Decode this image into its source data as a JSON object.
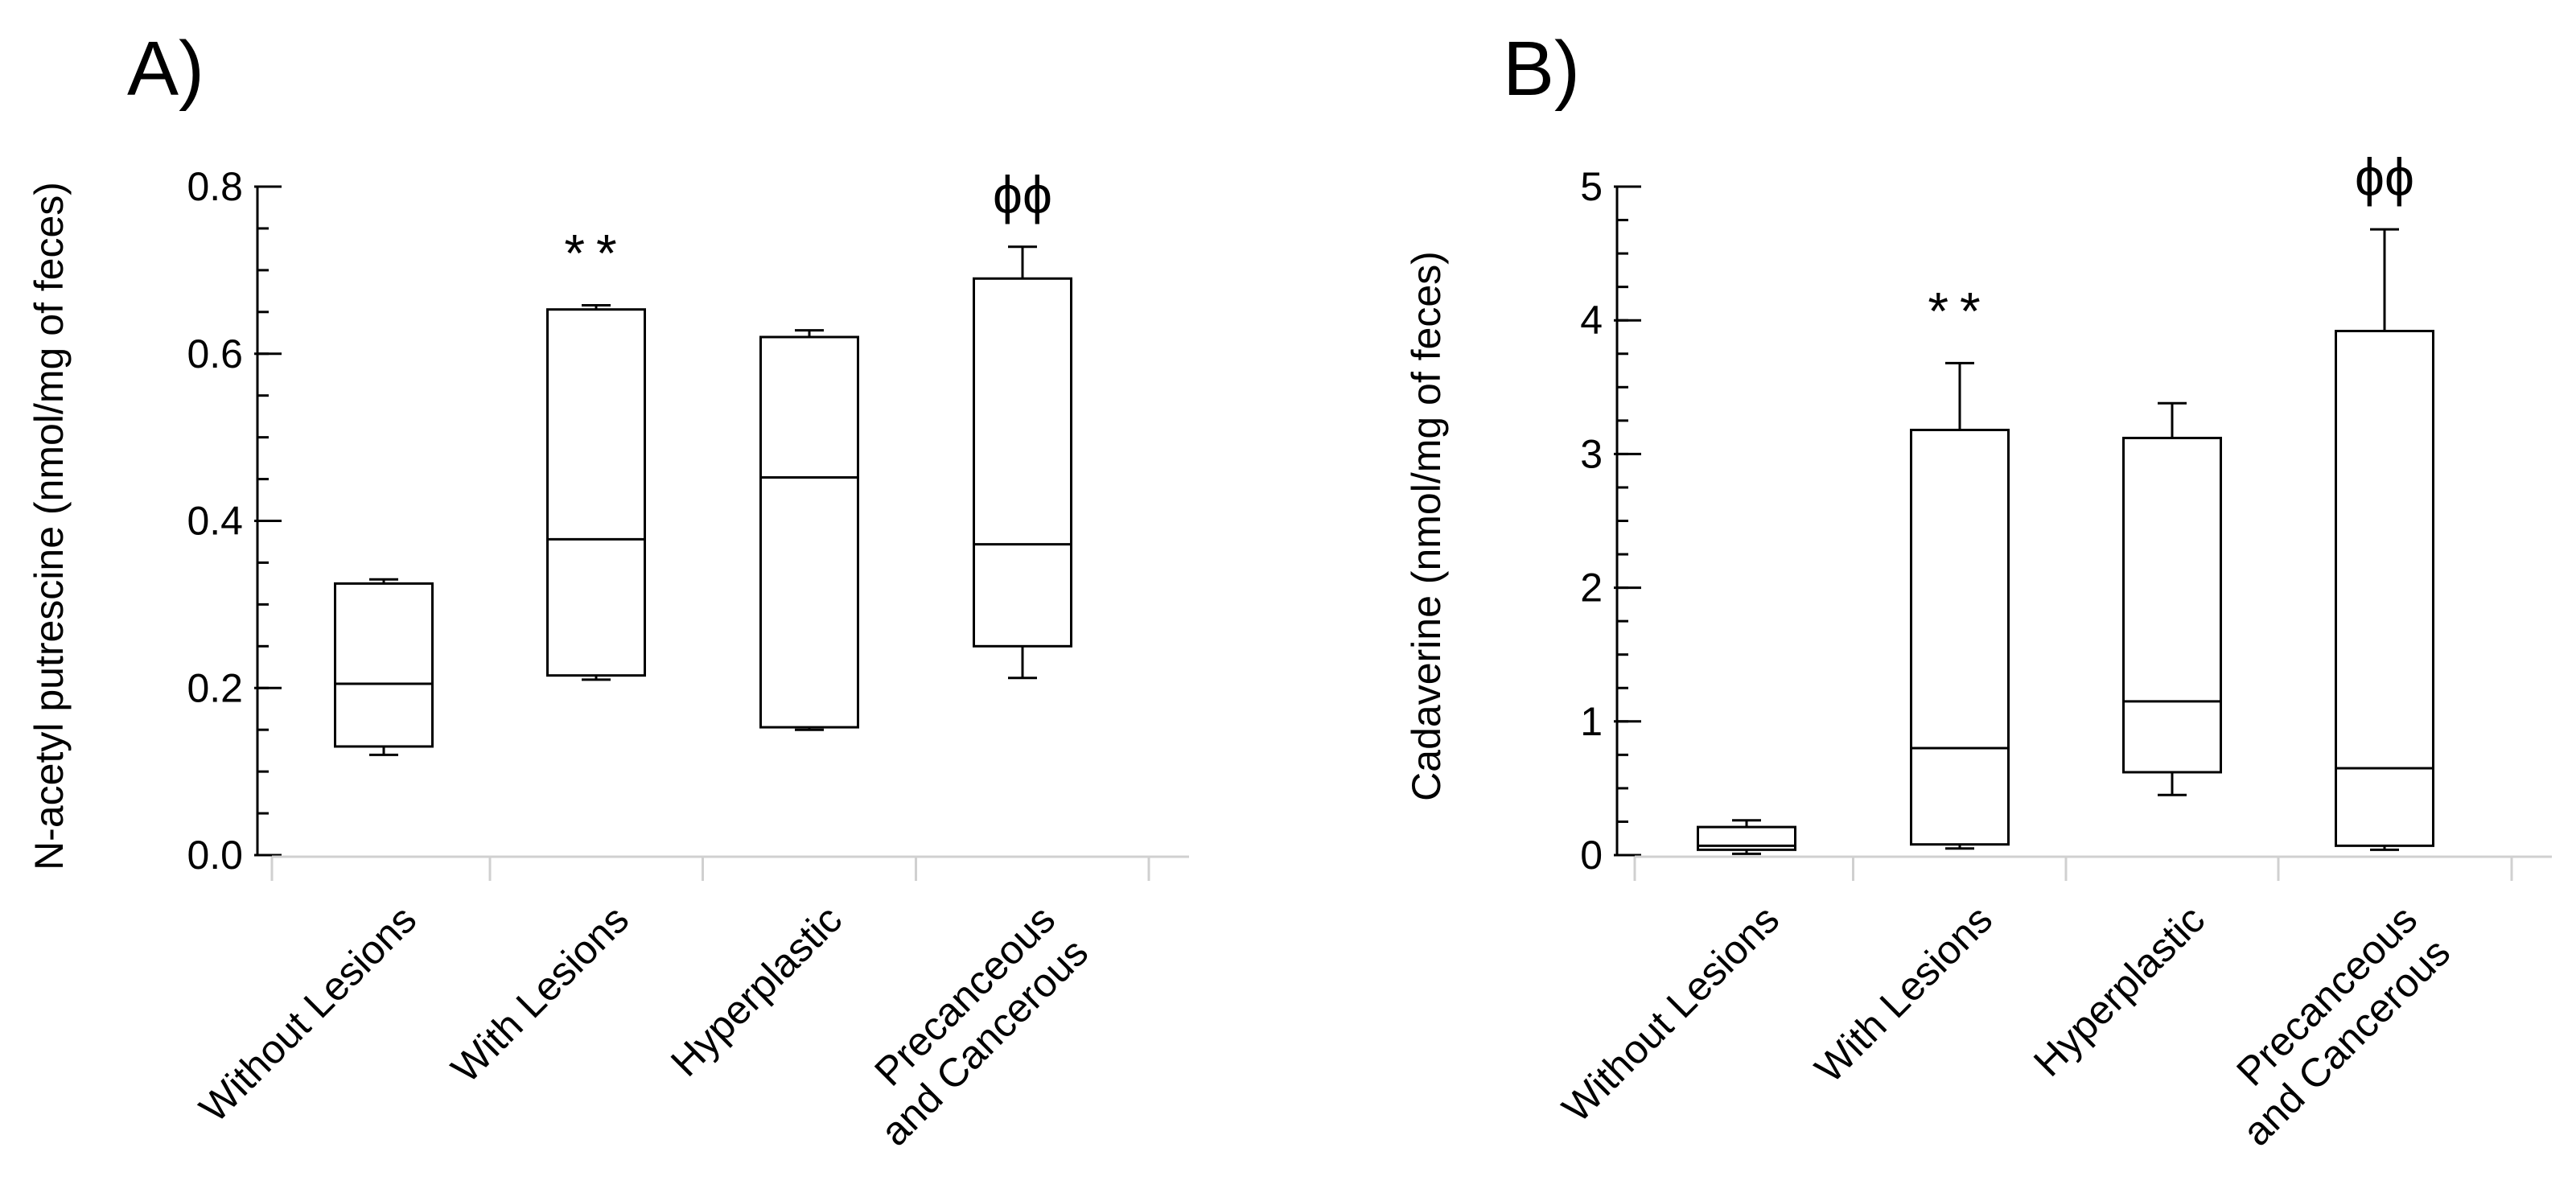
{
  "chart_data": [
    {
      "panel": "A)",
      "type": "box",
      "ylabel": "N-acetyl putrescine (nmol/mg of feces)",
      "ylim": [
        0,
        0.8
      ],
      "yticks": [
        "0.0",
        "0.2",
        "0.4",
        "0.6",
        "0.8"
      ],
      "ytick_values": [
        0,
        0.2,
        0.4,
        0.6,
        0.8
      ],
      "minor_step": 0.05,
      "categories": [
        [
          "Without Lesions"
        ],
        [
          "With Lesions"
        ],
        [
          "Hyperplastic"
        ],
        [
          "Precanceous",
          "and Cancerous"
        ]
      ],
      "boxes": [
        {
          "min": 0.12,
          "q1": 0.13,
          "median": 0.205,
          "q3": 0.325,
          "max": 0.33
        },
        {
          "min": 0.21,
          "q1": 0.215,
          "median": 0.378,
          "q3": 0.653,
          "max": 0.658
        },
        {
          "min": 0.15,
          "q1": 0.153,
          "median": 0.452,
          "q3": 0.62,
          "max": 0.628
        },
        {
          "min": 0.212,
          "q1": 0.25,
          "median": 0.372,
          "q3": 0.69,
          "max": 0.728
        }
      ],
      "annotations": [
        {
          "category_index": 1,
          "text": "**"
        },
        {
          "category_index": 3,
          "text": "ϕϕ"
        }
      ]
    },
    {
      "panel": "B)",
      "type": "box",
      "ylabel": "Cadaverine (nmol/mg of feces)",
      "ylim": [
        0,
        5
      ],
      "yticks": [
        "0",
        "1",
        "2",
        "3",
        "4",
        "5"
      ],
      "ytick_values": [
        0,
        1,
        2,
        3,
        4,
        5
      ],
      "minor_step": 0.25,
      "categories": [
        [
          "Without Lesions"
        ],
        [
          "With Lesions"
        ],
        [
          "Hyperplastic"
        ],
        [
          "Precanceous",
          "and Cancerous"
        ]
      ],
      "boxes": [
        {
          "min": 0.01,
          "q1": 0.04,
          "median": 0.07,
          "q3": 0.21,
          "max": 0.26
        },
        {
          "min": 0.05,
          "q1": 0.08,
          "median": 0.8,
          "q3": 3.18,
          "max": 3.68
        },
        {
          "min": 0.45,
          "q1": 0.62,
          "median": 1.15,
          "q3": 3.12,
          "max": 3.38
        },
        {
          "min": 0.04,
          "q1": 0.07,
          "median": 0.65,
          "q3": 3.92,
          "max": 4.68
        }
      ],
      "annotations": [
        {
          "category_index": 1,
          "text": "**"
        },
        {
          "category_index": 3,
          "text": "ϕϕ"
        }
      ]
    }
  ]
}
